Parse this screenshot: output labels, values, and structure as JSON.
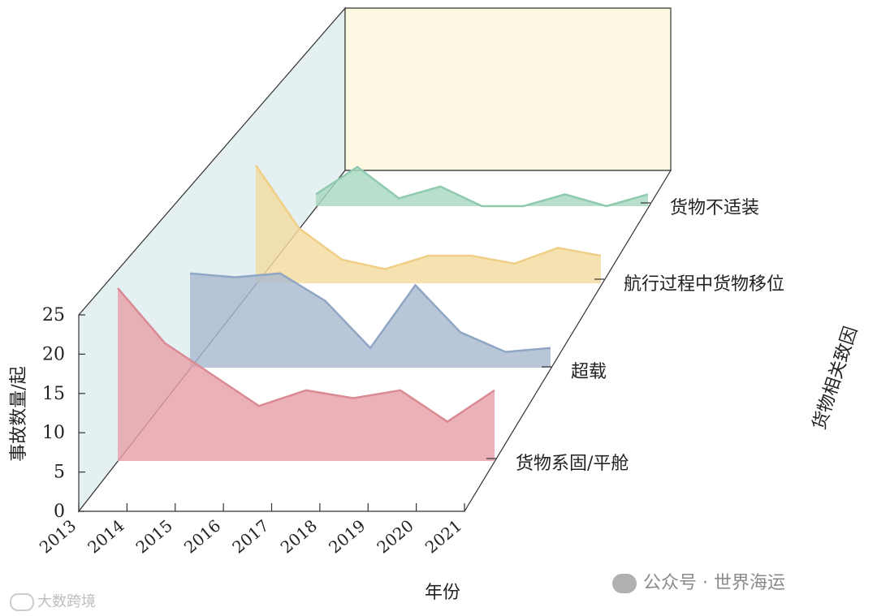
{
  "chart_data": {
    "type": "area",
    "title": "",
    "xlabel": "年份",
    "ylabel": "事故数量/起",
    "zlabel": "货物相关致因",
    "x": [
      "2013",
      "2014",
      "2015",
      "2016",
      "2017",
      "2018",
      "2019",
      "2020",
      "2021"
    ],
    "yticks": [
      "0",
      "5",
      "10",
      "15",
      "20",
      "25"
    ],
    "ylim": [
      0,
      25
    ],
    "series": [
      {
        "name": "货物系固/平舱",
        "color": "#e8a0a8",
        "line": "#d98a93",
        "values": [
          22,
          15,
          11,
          7,
          9,
          8,
          9,
          5,
          9
        ]
      },
      {
        "name": "超载",
        "color": "#a9b9cf",
        "line": "#8fa6c4",
        "values": [
          12,
          11.5,
          12,
          8.5,
          2.5,
          10.5,
          4.5,
          2,
          2.5
        ]
      },
      {
        "name": "航行过程中货物移位",
        "color": "#f4dca0",
        "line": "#efcf86",
        "values": [
          15,
          7,
          3,
          1.8,
          3.5,
          3.5,
          2.5,
          4.5,
          3.5
        ]
      },
      {
        "name": "货物不适装",
        "color": "#a8d8c0",
        "line": "#8fcaaf",
        "values": [
          1.5,
          5,
          1,
          2.5,
          0,
          0,
          1.5,
          0,
          1.5
        ]
      }
    ],
    "legend": "right-diagonal",
    "grid": false
  },
  "watermarks": {
    "left": "大数跨境",
    "right": "公众号 · 世界海运"
  }
}
